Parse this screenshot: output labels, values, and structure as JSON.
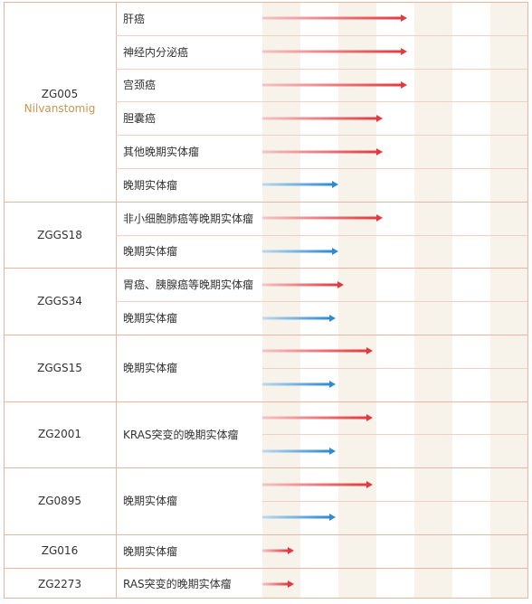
{
  "colors": {
    "border": "#e7b7a4",
    "drug_name": "#c8964f",
    "stripe": "#f8f3ea",
    "red_arrow_start": "#f6c3c6",
    "red_arrow_end": "#e23a3f",
    "blue_arrow_start": "#bcd9ef",
    "blue_arrow_end": "#2f8ad4"
  },
  "groups": [
    {
      "code": "ZG005",
      "name": "Nilvanstomig",
      "rows": [
        {
          "indication": "肝癌",
          "bars": [
            {
              "color": "red",
              "progress": 0.55
            }
          ]
        },
        {
          "indication": "神经内分泌癌",
          "bars": [
            {
              "color": "red",
              "progress": 0.55
            }
          ]
        },
        {
          "indication": "宫颈癌",
          "bars": [
            {
              "color": "red",
              "progress": 0.55
            }
          ]
        },
        {
          "indication": "胆囊癌",
          "bars": [
            {
              "color": "red",
              "progress": 0.46
            }
          ]
        },
        {
          "indication": "其他晚期实体瘤",
          "bars": [
            {
              "color": "red",
              "progress": 0.46
            }
          ]
        },
        {
          "indication": "晚期实体瘤",
          "bars": [
            {
              "color": "blue",
              "progress": 0.29
            }
          ]
        }
      ]
    },
    {
      "code": "ZGGS18",
      "name": "",
      "rows": [
        {
          "indication": "非小细胞肺癌等晚期实体瘤",
          "bars": [
            {
              "color": "red",
              "progress": 0.46
            }
          ]
        },
        {
          "indication": "晚期实体瘤",
          "bars": [
            {
              "color": "blue",
              "progress": 0.29
            }
          ]
        }
      ]
    },
    {
      "code": "ZGGS34",
      "name": "",
      "rows": [
        {
          "indication": "胃癌、胰腺癌等晚期实体瘤",
          "bars": [
            {
              "color": "red",
              "progress": 0.31
            }
          ]
        },
        {
          "indication": "晚期实体瘤",
          "bars": [
            {
              "color": "blue",
              "progress": 0.28
            }
          ]
        }
      ]
    },
    {
      "code": "ZGGS15",
      "name": "",
      "rows": [
        {
          "indication": "晚期实体瘤",
          "bars": [
            {
              "color": "red",
              "progress": 0.42
            },
            {
              "color": "blue",
              "progress": 0.28
            }
          ]
        }
      ]
    },
    {
      "code": "ZG2001",
      "name": "",
      "rows": [
        {
          "indication": "KRAS突变的晚期实体瘤",
          "bars": [
            {
              "color": "red",
              "progress": 0.42
            },
            {
              "color": "blue",
              "progress": 0.28
            }
          ]
        }
      ]
    },
    {
      "code": "ZG0895",
      "name": "",
      "rows": [
        {
          "indication": "晚期实体瘤",
          "bars": [
            {
              "color": "red",
              "progress": 0.42
            },
            {
              "color": "blue",
              "progress": 0.28
            }
          ]
        }
      ]
    },
    {
      "code": "ZG016",
      "name": "",
      "rows": [
        {
          "indication": "晚期实体瘤",
          "bars": [
            {
              "color": "red",
              "progress": 0.12
            }
          ]
        }
      ]
    },
    {
      "code": "ZG2273",
      "name": "",
      "rows": [
        {
          "indication": "RAS突变的晚期实体瘤",
          "bars": [
            {
              "color": "red",
              "progress": 0.12
            }
          ]
        }
      ]
    }
  ]
}
